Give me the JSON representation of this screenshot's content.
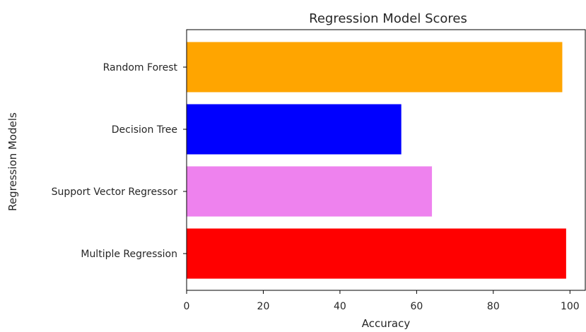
{
  "chart_data": {
    "type": "bar",
    "orientation": "horizontal",
    "title": "Regression Model Scores",
    "xlabel": "Accuracy",
    "ylabel": "Regression Models",
    "categories": [
      "Multiple Regression",
      "Support Vector Regressor",
      "Decision Tree",
      "Random Forest"
    ],
    "values": [
      99.0,
      64.0,
      56.0,
      98.0
    ],
    "colors": [
      "#ff0000",
      "#ee82ee",
      "#0000ff",
      "#ffa500"
    ],
    "xlim": [
      0,
      104
    ],
    "xticks": [
      0,
      20,
      40,
      60,
      80,
      100
    ],
    "xtick_labels": [
      "0",
      "20",
      "40",
      "60",
      "80",
      "100"
    ],
    "grid": false,
    "legend": "none"
  }
}
